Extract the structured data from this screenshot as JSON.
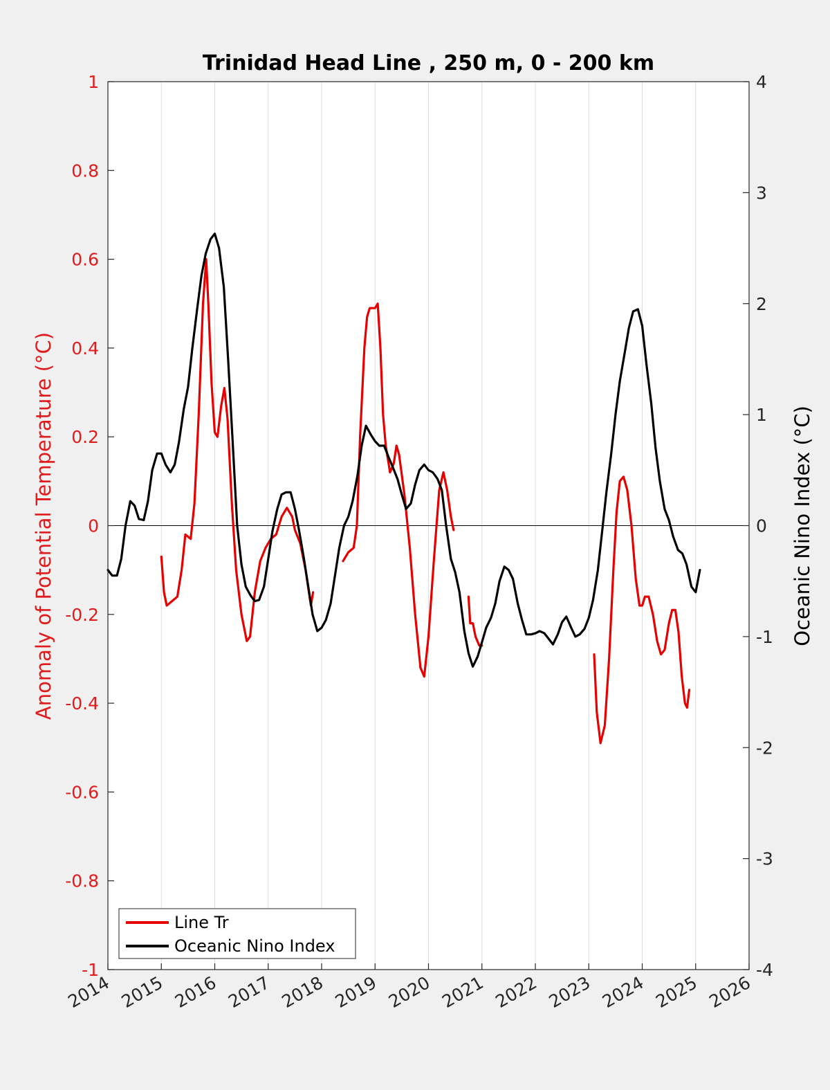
{
  "chart_data": {
    "type": "line",
    "title": "Trinidad Head Line , 250 m, 0 - 200 km",
    "xlabel": "",
    "ylabel_left": "Anomaly of Potential Temperature (°C)",
    "ylabel_right": "Oceanic Nino Index (°C)",
    "xlim": [
      2014,
      2026
    ],
    "ylim_left": [
      -1,
      1
    ],
    "ylim_right": [
      -4,
      4
    ],
    "x_ticks": [
      "2014",
      "2015",
      "2016",
      "2017",
      "2018",
      "2019",
      "2020",
      "2021",
      "2022",
      "2023",
      "2024",
      "2025",
      "2026"
    ],
    "y_ticks_left": [
      "1",
      "0.8",
      "0.6",
      "0.4",
      "0.2",
      "0",
      "-0.2",
      "-0.4",
      "-0.6",
      "-0.8",
      "-1"
    ],
    "y_ticks_right": [
      "4",
      "3",
      "2",
      "1",
      "0",
      "-1",
      "-2",
      "-3",
      "-4"
    ],
    "grid": "vertical",
    "legend_position": "bottom-left",
    "colors": {
      "left_axis": "#e31a1c",
      "line_tr": "#e80000",
      "oni": "#000000",
      "zero_line": "#000000"
    },
    "series": [
      {
        "name": "Line Tr",
        "axis": "left",
        "segments": [
          [
            [
              2015.0,
              -0.07
            ],
            [
              2015.05,
              -0.15
            ],
            [
              2015.1,
              -0.18
            ],
            [
              2015.2,
              -0.17
            ],
            [
              2015.3,
              -0.16
            ],
            [
              2015.38,
              -0.1
            ],
            [
              2015.45,
              -0.02
            ],
            [
              2015.55,
              -0.03
            ],
            [
              2015.62,
              0.05
            ],
            [
              2015.7,
              0.25
            ],
            [
              2015.78,
              0.5
            ],
            [
              2015.84,
              0.6
            ],
            [
              2015.88,
              0.5
            ],
            [
              2015.94,
              0.32
            ],
            [
              2016.0,
              0.21
            ],
            [
              2016.05,
              0.2
            ],
            [
              2016.12,
              0.27
            ],
            [
              2016.18,
              0.31
            ],
            [
              2016.24,
              0.24
            ],
            [
              2016.32,
              0.05
            ],
            [
              2016.4,
              -0.1
            ],
            [
              2016.5,
              -0.2
            ],
            [
              2016.6,
              -0.26
            ],
            [
              2016.66,
              -0.25
            ],
            [
              2016.75,
              -0.15
            ],
            [
              2016.85,
              -0.08
            ],
            [
              2016.95,
              -0.05
            ],
            [
              2017.05,
              -0.03
            ],
            [
              2017.15,
              -0.02
            ],
            [
              2017.25,
              0.02
            ],
            [
              2017.35,
              0.04
            ],
            [
              2017.45,
              0.02
            ],
            [
              2017.5,
              -0.01
            ],
            [
              2017.6,
              -0.04
            ],
            [
              2017.7,
              -0.1
            ],
            [
              2017.8,
              -0.18
            ],
            [
              2017.84,
              -0.15
            ]
          ],
          [
            [
              2018.4,
              -0.08
            ],
            [
              2018.5,
              -0.06
            ],
            [
              2018.6,
              -0.05
            ],
            [
              2018.66,
              0.0
            ],
            [
              2018.72,
              0.2
            ],
            [
              2018.8,
              0.4
            ],
            [
              2018.85,
              0.47
            ],
            [
              2018.9,
              0.49
            ],
            [
              2019.0,
              0.49
            ],
            [
              2019.05,
              0.5
            ],
            [
              2019.1,
              0.4
            ],
            [
              2019.15,
              0.25
            ],
            [
              2019.2,
              0.18
            ],
            [
              2019.28,
              0.12
            ],
            [
              2019.35,
              0.14
            ],
            [
              2019.4,
              0.18
            ],
            [
              2019.45,
              0.16
            ],
            [
              2019.55,
              0.07
            ],
            [
              2019.65,
              -0.05
            ],
            [
              2019.75,
              -0.2
            ],
            [
              2019.85,
              -0.32
            ],
            [
              2019.92,
              -0.34
            ],
            [
              2020.0,
              -0.25
            ],
            [
              2020.1,
              -0.08
            ],
            [
              2020.2,
              0.08
            ],
            [
              2020.28,
              0.12
            ],
            [
              2020.35,
              0.08
            ],
            [
              2020.42,
              0.02
            ],
            [
              2020.47,
              -0.01
            ]
          ],
          [
            [
              2020.75,
              -0.16
            ],
            [
              2020.78,
              -0.22
            ],
            [
              2020.83,
              -0.22
            ],
            [
              2020.88,
              -0.25
            ],
            [
              2020.95,
              -0.27
            ],
            [
              2021.0,
              -0.27
            ]
          ],
          [
            [
              2023.1,
              -0.29
            ],
            [
              2023.15,
              -0.42
            ],
            [
              2023.22,
              -0.49
            ],
            [
              2023.3,
              -0.45
            ],
            [
              2023.38,
              -0.3
            ],
            [
              2023.46,
              -0.1
            ],
            [
              2023.52,
              0.03
            ],
            [
              2023.58,
              0.1
            ],
            [
              2023.65,
              0.11
            ],
            [
              2023.72,
              0.08
            ],
            [
              2023.8,
              0.0
            ],
            [
              2023.88,
              -0.12
            ],
            [
              2023.95,
              -0.18
            ],
            [
              2024.0,
              -0.18
            ],
            [
              2024.05,
              -0.16
            ],
            [
              2024.12,
              -0.16
            ],
            [
              2024.2,
              -0.2
            ],
            [
              2024.28,
              -0.26
            ],
            [
              2024.35,
              -0.29
            ],
            [
              2024.42,
              -0.28
            ],
            [
              2024.5,
              -0.22
            ],
            [
              2024.56,
              -0.19
            ],
            [
              2024.62,
              -0.19
            ],
            [
              2024.68,
              -0.24
            ],
            [
              2024.74,
              -0.34
            ],
            [
              2024.8,
              -0.4
            ],
            [
              2024.84,
              -0.41
            ],
            [
              2024.88,
              -0.37
            ]
          ]
        ]
      },
      {
        "name": "Oceanic Nino Index",
        "axis": "right",
        "segments": [
          [
            [
              2014.0,
              -0.4
            ],
            [
              2014.08,
              -0.45
            ],
            [
              2014.17,
              -0.45
            ],
            [
              2014.25,
              -0.3
            ],
            [
              2014.33,
              0.0
            ],
            [
              2014.42,
              0.22
            ],
            [
              2014.5,
              0.18
            ],
            [
              2014.58,
              0.06
            ],
            [
              2014.67,
              0.05
            ],
            [
              2014.75,
              0.22
            ],
            [
              2014.83,
              0.5
            ],
            [
              2014.92,
              0.65
            ],
            [
              2015.0,
              0.65
            ],
            [
              2015.08,
              0.55
            ],
            [
              2015.17,
              0.48
            ],
            [
              2015.25,
              0.55
            ],
            [
              2015.33,
              0.75
            ],
            [
              2015.42,
              1.05
            ],
            [
              2015.5,
              1.25
            ],
            [
              2015.58,
              1.6
            ],
            [
              2015.67,
              1.95
            ],
            [
              2015.75,
              2.25
            ],
            [
              2015.83,
              2.45
            ],
            [
              2015.92,
              2.58
            ],
            [
              2016.0,
              2.63
            ],
            [
              2016.08,
              2.5
            ],
            [
              2016.17,
              2.15
            ],
            [
              2016.25,
              1.5
            ],
            [
              2016.33,
              0.8
            ],
            [
              2016.42,
              0.0
            ],
            [
              2016.5,
              -0.35
            ],
            [
              2016.58,
              -0.55
            ],
            [
              2016.67,
              -0.63
            ],
            [
              2016.75,
              -0.68
            ],
            [
              2016.83,
              -0.67
            ],
            [
              2016.92,
              -0.55
            ],
            [
              2017.0,
              -0.3
            ],
            [
              2017.08,
              -0.05
            ],
            [
              2017.17,
              0.15
            ],
            [
              2017.25,
              0.28
            ],
            [
              2017.33,
              0.3
            ],
            [
              2017.42,
              0.3
            ],
            [
              2017.5,
              0.15
            ],
            [
              2017.58,
              -0.05
            ],
            [
              2017.67,
              -0.3
            ],
            [
              2017.75,
              -0.55
            ],
            [
              2017.83,
              -0.8
            ],
            [
              2017.92,
              -0.95
            ],
            [
              2018.0,
              -0.92
            ],
            [
              2018.08,
              -0.85
            ],
            [
              2018.17,
              -0.7
            ],
            [
              2018.25,
              -0.45
            ],
            [
              2018.33,
              -0.2
            ],
            [
              2018.42,
              0.0
            ],
            [
              2018.5,
              0.08
            ],
            [
              2018.58,
              0.22
            ],
            [
              2018.67,
              0.45
            ],
            [
              2018.75,
              0.72
            ],
            [
              2018.83,
              0.9
            ],
            [
              2018.92,
              0.82
            ],
            [
              2019.0,
              0.76
            ],
            [
              2019.08,
              0.72
            ],
            [
              2019.17,
              0.72
            ],
            [
              2019.25,
              0.62
            ],
            [
              2019.33,
              0.53
            ],
            [
              2019.42,
              0.42
            ],
            [
              2019.5,
              0.28
            ],
            [
              2019.58,
              0.15
            ],
            [
              2019.67,
              0.2
            ],
            [
              2019.75,
              0.37
            ],
            [
              2019.83,
              0.5
            ],
            [
              2019.92,
              0.55
            ],
            [
              2020.0,
              0.5
            ],
            [
              2020.08,
              0.48
            ],
            [
              2020.17,
              0.42
            ],
            [
              2020.25,
              0.32
            ],
            [
              2020.33,
              0.0
            ],
            [
              2020.42,
              -0.3
            ],
            [
              2020.5,
              -0.42
            ],
            [
              2020.58,
              -0.6
            ],
            [
              2020.67,
              -0.95
            ],
            [
              2020.75,
              -1.15
            ],
            [
              2020.83,
              -1.27
            ],
            [
              2020.92,
              -1.18
            ],
            [
              2021.0,
              -1.05
            ],
            [
              2021.08,
              -0.92
            ],
            [
              2021.17,
              -0.83
            ],
            [
              2021.25,
              -0.7
            ],
            [
              2021.33,
              -0.5
            ],
            [
              2021.42,
              -0.37
            ],
            [
              2021.5,
              -0.4
            ],
            [
              2021.58,
              -0.48
            ],
            [
              2021.67,
              -0.7
            ],
            [
              2021.75,
              -0.85
            ],
            [
              2021.83,
              -0.98
            ],
            [
              2021.92,
              -0.98
            ],
            [
              2022.0,
              -0.97
            ],
            [
              2022.08,
              -0.95
            ],
            [
              2022.17,
              -0.97
            ],
            [
              2022.25,
              -1.02
            ],
            [
              2022.33,
              -1.07
            ],
            [
              2022.42,
              -0.98
            ],
            [
              2022.5,
              -0.87
            ],
            [
              2022.58,
              -0.82
            ],
            [
              2022.67,
              -0.92
            ],
            [
              2022.75,
              -1.0
            ],
            [
              2022.83,
              -0.98
            ],
            [
              2022.92,
              -0.93
            ],
            [
              2023.0,
              -0.83
            ],
            [
              2023.08,
              -0.67
            ],
            [
              2023.17,
              -0.4
            ],
            [
              2023.25,
              -0.05
            ],
            [
              2023.33,
              0.3
            ],
            [
              2023.42,
              0.65
            ],
            [
              2023.5,
              1.0
            ],
            [
              2023.58,
              1.3
            ],
            [
              2023.67,
              1.55
            ],
            [
              2023.75,
              1.78
            ],
            [
              2023.83,
              1.93
            ],
            [
              2023.92,
              1.95
            ],
            [
              2024.0,
              1.8
            ],
            [
              2024.08,
              1.45
            ],
            [
              2024.17,
              1.1
            ],
            [
              2024.25,
              0.7
            ],
            [
              2024.33,
              0.4
            ],
            [
              2024.42,
              0.15
            ],
            [
              2024.5,
              0.05
            ],
            [
              2024.58,
              -0.1
            ],
            [
              2024.67,
              -0.22
            ],
            [
              2024.75,
              -0.25
            ],
            [
              2024.83,
              -0.35
            ],
            [
              2024.92,
              -0.55
            ],
            [
              2025.0,
              -0.6
            ],
            [
              2025.08,
              -0.4
            ]
          ]
        ]
      }
    ]
  }
}
